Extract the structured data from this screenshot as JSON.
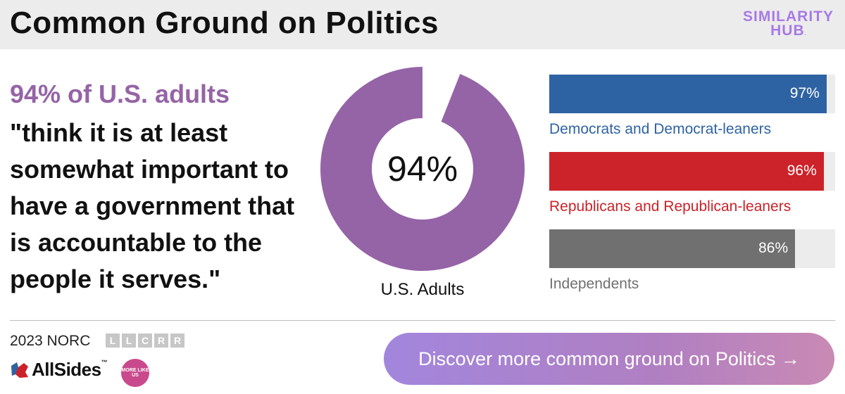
{
  "header": {
    "title": "Common Ground on Politics",
    "logo_line1": "SIMILARITY",
    "logo_line2": "HUB",
    "logo_suffix": "."
  },
  "headline": {
    "lead": "94% of U.S. adults",
    "quote": "\"think it is at least somewhat important to have a government that is accountable to the people it serves.\""
  },
  "colors": {
    "accent_purple": "#9564a6",
    "democrat": "#2e63a3",
    "republican": "#cc2229",
    "independent": "#707070",
    "track": "#ececec"
  },
  "chart_data": [
    {
      "type": "pie",
      "variant": "donut",
      "center_label": "94%",
      "label": "U.S. Adults",
      "values": [
        94,
        6
      ],
      "categories": [
        "U.S. Adults",
        "remainder"
      ]
    },
    {
      "type": "bar",
      "orientation": "horizontal",
      "xlim": [
        0,
        100
      ],
      "categories": [
        "Democrats and Democrat-leaners",
        "Republicans and Republican-leaners",
        "Independents"
      ],
      "values": [
        97,
        96,
        86
      ],
      "value_labels": [
        "97%",
        "96%",
        "86%"
      ],
      "colors": [
        "#2e63a3",
        "#cc2229",
        "#707070"
      ]
    }
  ],
  "footer": {
    "source": "2023 NORC",
    "bias_letters": [
      "L",
      "L",
      "C",
      "R",
      "R"
    ],
    "allsides_brand": "AllSides",
    "allsides_tm": "™",
    "mlu_badge": "MORE LIKE US",
    "cta_label": "Discover more common ground on Politics →"
  }
}
